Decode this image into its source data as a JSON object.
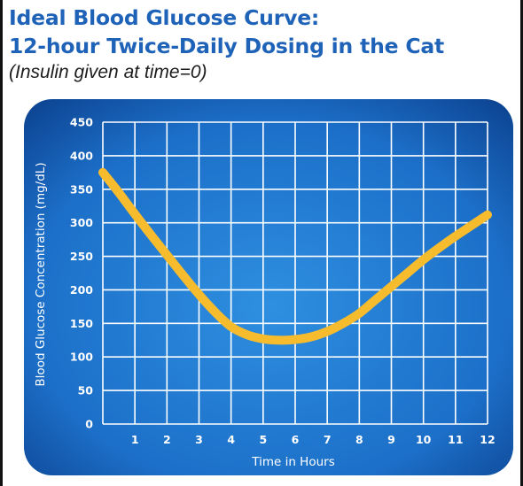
{
  "header": {
    "title_line1": "Ideal Blood Glucose Curve:",
    "title_line2": "12-hour Twice-Daily Dosing in the Cat",
    "subtitle": "(Insulin given at time=0)"
  },
  "colors": {
    "title": "#1f63b8",
    "panel_edge": "#0b3f8c",
    "panel_center": "#2e8fe0",
    "grid": "#ffffff",
    "curve": "#f7bb2e"
  },
  "chart_data": {
    "type": "line",
    "title": "Ideal Blood Glucose Curve: 12-hour Twice-Daily Dosing in the Cat",
    "subtitle": "(Insulin given at time=0)",
    "xlabel": "Time in Hours",
    "ylabel": "Blood Glucose Concentration (mg/dL)",
    "xlim": [
      0,
      12
    ],
    "ylim": [
      0,
      450
    ],
    "x_ticks": [
      1,
      2,
      3,
      4,
      5,
      6,
      7,
      8,
      9,
      10,
      11,
      12
    ],
    "y_ticks": [
      0,
      50,
      100,
      150,
      200,
      250,
      300,
      350,
      400,
      450
    ],
    "grid": true,
    "legend": "none",
    "series": [
      {
        "x": [
          0,
          0.5,
          1,
          1.5,
          2,
          2.5,
          3,
          3.5,
          4,
          4.5,
          5,
          5.5,
          6,
          6.5,
          7,
          7.5,
          8,
          8.5,
          9,
          9.5,
          10,
          10.5,
          11,
          11.5,
          12
        ],
        "y": [
          375,
          345,
          313,
          282,
          252,
          222,
          193,
          167,
          145,
          133,
          127,
          125,
          126,
          130,
          138,
          150,
          165,
          185,
          205,
          225,
          245,
          263,
          280,
          296,
          312
        ]
      }
    ]
  }
}
